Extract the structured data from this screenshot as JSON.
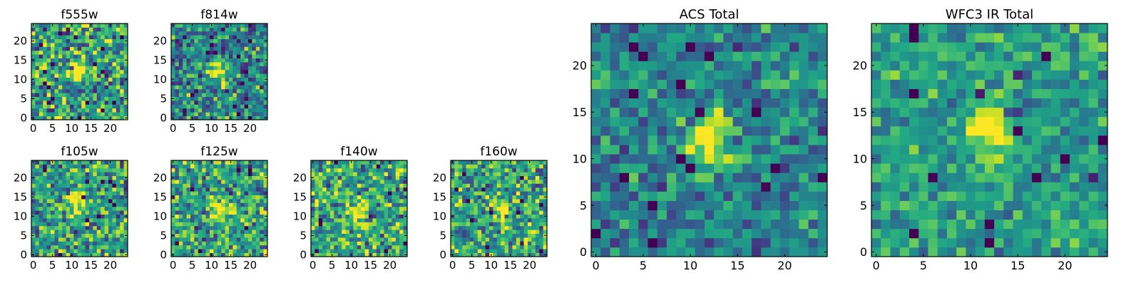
{
  "figure": {
    "colormap": "viridis",
    "background": "#ffffff",
    "grid": false
  },
  "chart_data": [
    {
      "type": "heatmap",
      "title": "f555w",
      "xticks": [
        0,
        5,
        10,
        15,
        20
      ],
      "yticks": [
        0,
        5,
        10,
        15,
        20
      ],
      "xlim": [
        0,
        24
      ],
      "ylim": [
        0,
        24
      ],
      "grid_size": 25,
      "source_center": [
        11,
        12
      ],
      "source_peak": 0.72,
      "background_level": 0.55,
      "noise_amplitude": 0.55
    },
    {
      "type": "heatmap",
      "title": "f814w",
      "xticks": [
        0,
        5,
        10,
        15,
        20
      ],
      "yticks": [
        0,
        5,
        10,
        15,
        20
      ],
      "xlim": [
        0,
        24
      ],
      "ylim": [
        0,
        24
      ],
      "grid_size": 25,
      "source_center": [
        12,
        12
      ],
      "source_peak": 0.75,
      "background_level": 0.45,
      "noise_amplitude": 0.5
    },
    {
      "type": "heatmap",
      "title": "f105w",
      "xticks": [
        0,
        5,
        10,
        15,
        20
      ],
      "yticks": [
        0,
        5,
        10,
        15,
        20
      ],
      "xlim": [
        0,
        24
      ],
      "ylim": [
        0,
        24
      ],
      "grid_size": 25,
      "source_center": [
        11,
        13
      ],
      "source_peak": 0.55,
      "background_level": 0.55,
      "noise_amplitude": 0.5
    },
    {
      "type": "heatmap",
      "title": "f125w",
      "xticks": [
        0,
        5,
        10,
        15,
        20
      ],
      "yticks": [
        0,
        5,
        10,
        15,
        20
      ],
      "xlim": [
        0,
        24
      ],
      "ylim": [
        0,
        24
      ],
      "grid_size": 25,
      "source_center": [
        12,
        12
      ],
      "source_peak": 0.5,
      "background_level": 0.58,
      "noise_amplitude": 0.5
    },
    {
      "type": "heatmap",
      "title": "f140w",
      "xticks": [
        0,
        5,
        10,
        15,
        20
      ],
      "yticks": [
        0,
        5,
        10,
        15,
        20
      ],
      "xlim": [
        0,
        24
      ],
      "ylim": [
        0,
        24
      ],
      "grid_size": 25,
      "source_center": [
        12,
        11
      ],
      "source_peak": 0.5,
      "background_level": 0.6,
      "noise_amplitude": 0.5
    },
    {
      "type": "heatmap",
      "title": "f160w",
      "xticks": [
        0,
        5,
        10,
        15,
        20
      ],
      "yticks": [
        0,
        5,
        10,
        15,
        20
      ],
      "xlim": [
        0,
        24
      ],
      "ylim": [
        0,
        24
      ],
      "grid_size": 25,
      "source_center": [
        13,
        12
      ],
      "source_peak": 0.5,
      "background_level": 0.58,
      "noise_amplitude": 0.5
    },
    {
      "type": "heatmap",
      "title": "ACS Total",
      "xticks": [
        0,
        5,
        10,
        15,
        20
      ],
      "yticks": [
        0,
        5,
        10,
        15,
        20
      ],
      "xlim": [
        0,
        24
      ],
      "ylim": [
        0,
        24
      ],
      "grid_size": 25,
      "source_center": [
        12,
        12
      ],
      "source_peak": 0.65,
      "background_level": 0.45,
      "noise_amplitude": 0.35
    },
    {
      "type": "heatmap",
      "title": "WFC3 IR Total",
      "xticks": [
        0,
        5,
        10,
        15,
        20
      ],
      "yticks": [
        0,
        5,
        10,
        15,
        20
      ],
      "xlim": [
        0,
        24
      ],
      "ylim": [
        0,
        24
      ],
      "grid_size": 25,
      "source_center": [
        12,
        13
      ],
      "source_peak": 0.5,
      "background_level": 0.55,
      "noise_amplitude": 0.3
    }
  ]
}
